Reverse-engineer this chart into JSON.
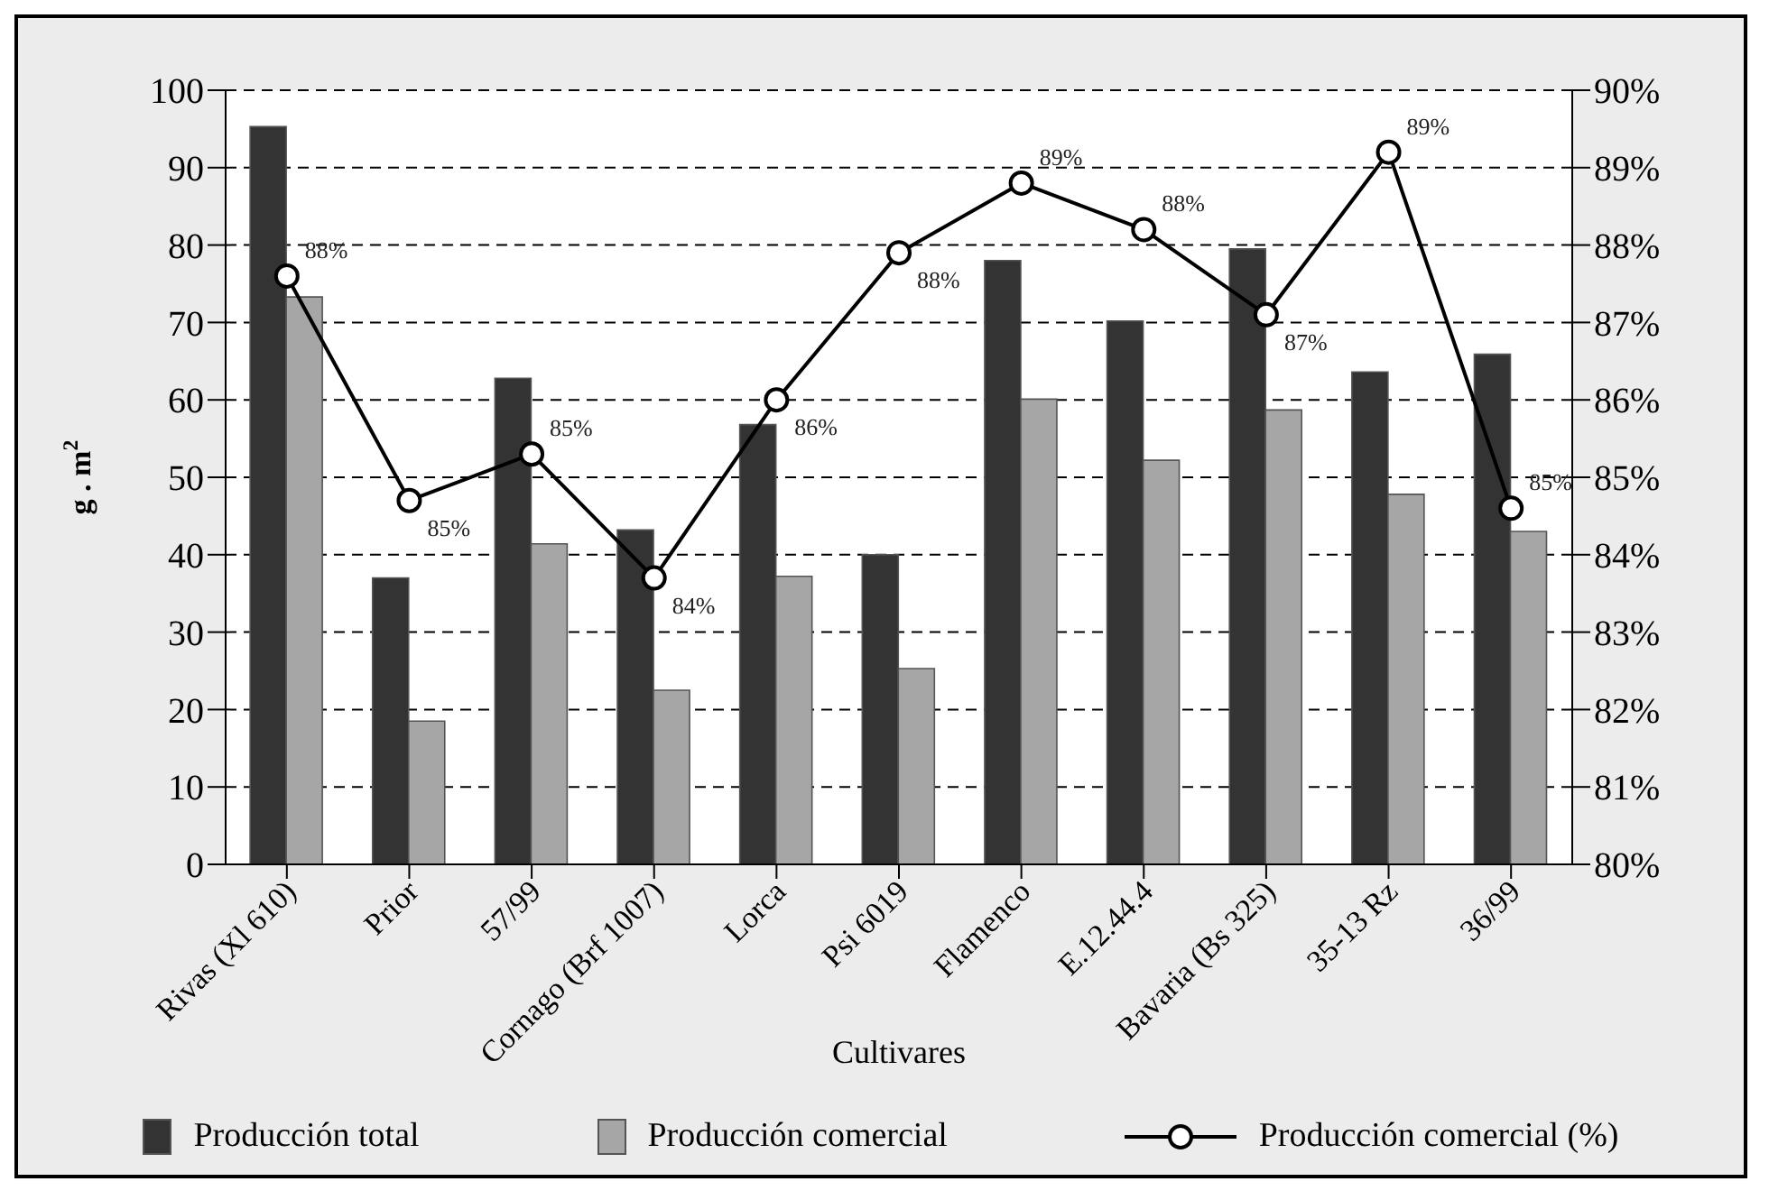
{
  "chart_data": {
    "type": "bar",
    "categories": [
      "Rivas (Xl 610)",
      "Prior",
      "57/99",
      "Cornago (Brf 1007)",
      "Lorca",
      "Psi 6019",
      "Flamenco",
      "E.12.44.4",
      "Bavaria (Bs 325)",
      "35-13 Rz",
      "36/99"
    ],
    "series": [
      {
        "name": "Producción total",
        "color": "#333333",
        "values": [
          95.3,
          37.0,
          62.8,
          43.2,
          56.8,
          40.0,
          78.0,
          70.2,
          79.5,
          63.6,
          65.9
        ]
      },
      {
        "name": "Producción comercial",
        "color": "#a6a6a6",
        "values": [
          73.3,
          18.5,
          41.4,
          22.5,
          37.2,
          25.3,
          60.1,
          52.2,
          58.7,
          47.8,
          43.0
        ]
      },
      {
        "name": "Producción comercial (%)",
        "type": "line",
        "axis": "y2",
        "color": "#000000",
        "values": [
          87.6,
          84.7,
          85.3,
          83.7,
          86.0,
          87.9,
          88.8,
          88.2,
          87.1,
          89.2,
          84.6
        ],
        "value_labels": [
          "88%",
          "85%",
          "85%",
          "84%",
          "86%",
          "88%",
          "89%",
          "88%",
          "87%",
          "89%",
          "85%"
        ]
      }
    ],
    "xlabel": "Cultivares",
    "ylabel": "g . m$^{2}$",
    "ylim": [
      0,
      100
    ],
    "yticks": [
      0,
      10,
      20,
      30,
      40,
      50,
      60,
      70,
      80,
      90,
      100
    ],
    "y2lim": [
      80,
      90
    ],
    "y2ticks": [
      {
        "value": 80,
        "label": "80%"
      },
      {
        "value": 81,
        "label": "81%"
      },
      {
        "value": 82,
        "label": "82%"
      },
      {
        "value": 83,
        "label": "83%"
      },
      {
        "value": 84,
        "label": "84%"
      },
      {
        "value": 85,
        "label": "85%"
      },
      {
        "value": 86,
        "label": "86%"
      },
      {
        "value": 87,
        "label": "87%"
      },
      {
        "value": 88,
        "label": "88%"
      },
      {
        "value": 89,
        "label": "89%"
      },
      {
        "value": 90,
        "label": "90%"
      }
    ],
    "grid": "y",
    "legend": "bottom",
    "marker": "circle",
    "line_style": "solid"
  }
}
